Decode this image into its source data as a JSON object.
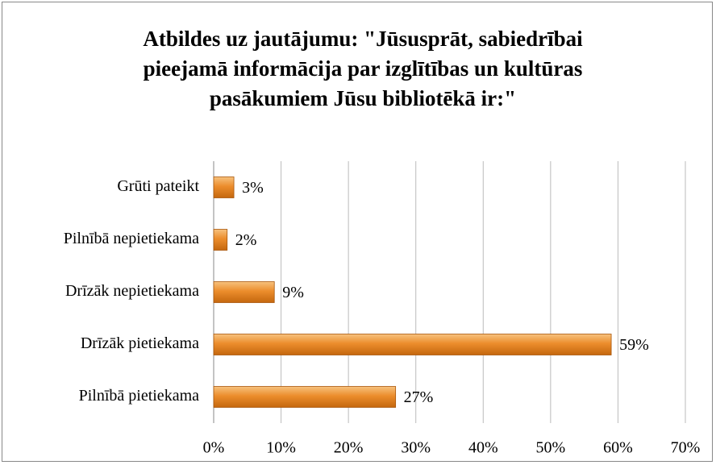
{
  "chart_data": {
    "type": "bar",
    "orientation": "horizontal",
    "title": "Atbildes uz jautājumu: \"Jūsusprāt, sabiedrībai pieejamā informācija par izglītības un kultūras pasākumiem Jūsu bibliotēkā ir:\"",
    "categories": [
      "Grūti pateikt",
      "Pilnībā nepietiekama",
      "Drīzāk nepietiekama",
      "Drīzāk pietiekama",
      "Pilnībā pietiekama"
    ],
    "values": [
      3,
      2,
      9,
      59,
      27
    ],
    "value_labels": [
      "3%",
      "2%",
      "9%",
      "59%",
      "27%"
    ],
    "color": "#e8892a",
    "xlim": [
      0,
      70
    ],
    "xticks": [
      {
        "value": 0,
        "label": "0%"
      },
      {
        "value": 10,
        "label": "10%"
      },
      {
        "value": 20,
        "label": "20%"
      },
      {
        "value": 30,
        "label": "30%"
      },
      {
        "value": 40,
        "label": "40%"
      },
      {
        "value": 50,
        "label": "50%"
      },
      {
        "value": 60,
        "label": "60%"
      },
      {
        "value": 70,
        "label": "70%"
      }
    ],
    "grid": true
  }
}
